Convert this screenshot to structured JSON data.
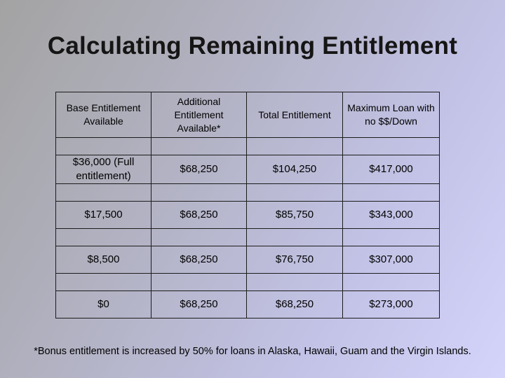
{
  "title": "Calculating Remaining Entitlement",
  "table": {
    "headers": [
      "Base Entitlement Available",
      "Additional Entitlement Available*",
      "Total Entitlement",
      "Maximum Loan with no $$/Down"
    ],
    "rows": [
      [
        "$36,000 (Full entitlement)",
        "$68,250",
        "$104,250",
        "$417,000"
      ],
      [
        "$17,500",
        "$68,250",
        "$85,750",
        "$343,000"
      ],
      [
        "$8,500",
        "$68,250",
        "$76,750",
        "$307,000"
      ],
      [
        "$0",
        "$68,250",
        "$68,250",
        "$273,000"
      ]
    ]
  },
  "footnote": "*Bonus entitlement is increased by 50% for loans in Alaska, Hawaii, Guam and the Virgin Islands."
}
